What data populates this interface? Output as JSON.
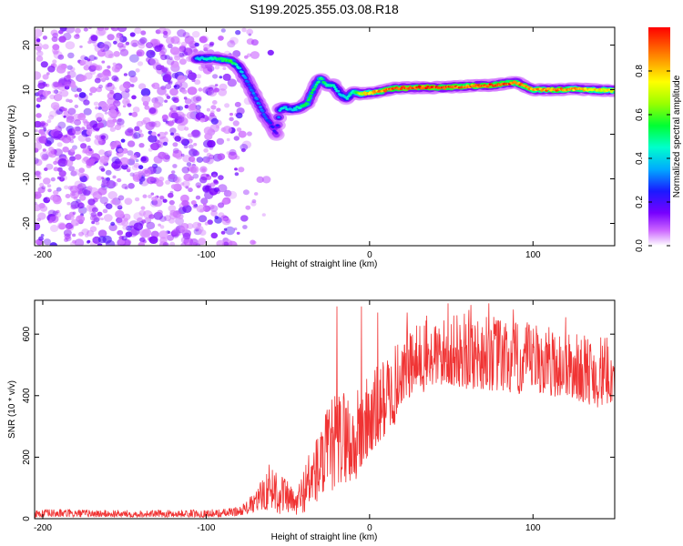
{
  "title": "S199.2025.355.03.08.R18",
  "chart_data": [
    {
      "type": "heatmap",
      "xlabel": "Height of straight line (km)",
      "ylabel": "Frequency (Hz)",
      "xlim": [
        -205,
        150
      ],
      "ylim": [
        -25,
        24
      ],
      "xticks": [
        -200,
        -100,
        0,
        100
      ],
      "yticks": [
        20,
        10,
        0,
        -10,
        -20
      ],
      "colorbar": {
        "label": "Normalized spectral amplitude",
        "range": [
          0,
          1
        ],
        "ticks": [
          "0.0",
          "0.2",
          "0.4",
          "0.6",
          "0.8"
        ],
        "colormap": "rainbow (magenta-low to red-high)"
      },
      "noise_region": {
        "x_range": [
          -205,
          -80
        ],
        "freq_range": [
          -25,
          24
        ],
        "amplitude_range": [
          0.05,
          0.2
        ]
      },
      "ridge": {
        "x": [
          -106,
          -95,
          -85,
          -80,
          -75,
          -68,
          -64,
          -60,
          -57,
          -55,
          -52,
          -48,
          -43,
          -38,
          -33,
          -30,
          -26,
          -22,
          -18,
          -14,
          -10,
          -6,
          -2,
          5,
          15,
          30,
          45,
          60,
          75,
          85,
          90,
          100,
          115,
          125,
          135,
          150
        ],
        "frequency": [
          17,
          17,
          16.5,
          15,
          12,
          7,
          4,
          2,
          0,
          5.5,
          6,
          5.5,
          6,
          7,
          11,
          12.5,
          11,
          11,
          9,
          8,
          9.5,
          9,
          9.2,
          9.5,
          10.3,
          10.5,
          10.5,
          10.8,
          11,
          11.5,
          11.6,
          10,
          10,
          10.2,
          10,
          9.8
        ],
        "amplitude": [
          0.4,
          0.5,
          0.55,
          0.45,
          0.3,
          0.35,
          0.3,
          0.25,
          0.2,
          0.4,
          0.45,
          0.4,
          0.5,
          0.55,
          0.5,
          0.55,
          0.5,
          0.45,
          0.4,
          0.45,
          0.5,
          0.7,
          0.8,
          0.85,
          0.95,
          0.95,
          0.95,
          0.9,
          0.95,
          0.95,
          0.9,
          0.85,
          0.9,
          0.85,
          0.8,
          0.75
        ]
      }
    },
    {
      "type": "line",
      "xlabel": "Height of straight line (km)",
      "ylabel": "SNR (10 * v/v)",
      "xlim": [
        -205,
        150
      ],
      "ylim": [
        0,
        710
      ],
      "xticks": [
        -200,
        -100,
        0,
        100
      ],
      "yticks": [
        0,
        200,
        400,
        600
      ],
      "series": [
        {
          "name": "SNR",
          "color": "#f03333",
          "envelope": {
            "x": [
              -205,
              -190,
              -170,
              -150,
              -130,
              -110,
              -100,
              -90,
              -80,
              -75,
              -70,
              -65,
              -60,
              -55,
              -50,
              -45,
              -40,
              -35,
              -30,
              -25,
              -20,
              -15,
              -10,
              -5,
              0,
              5,
              10,
              15,
              20,
              30,
              40,
              50,
              60,
              70,
              80,
              90,
              100,
              110,
              120,
              130,
              140,
              150
            ],
            "low": [
              5,
              5,
              5,
              5,
              5,
              5,
              5,
              5,
              10,
              15,
              20,
              30,
              25,
              15,
              20,
              10,
              20,
              40,
              60,
              80,
              100,
              120,
              100,
              150,
              200,
              220,
              280,
              300,
              380,
              400,
              430,
              430,
              420,
              420,
              410,
              400,
              410,
              400,
              390,
              380,
              360,
              380
            ],
            "high": [
              30,
              32,
              30,
              28,
              28,
              30,
              30,
              32,
              40,
              60,
              90,
              140,
              200,
              170,
              120,
              90,
              180,
              260,
              300,
              380,
              420,
              440,
              400,
              450,
              480,
              500,
              540,
              560,
              600,
              640,
              650,
              660,
              680,
              670,
              660,
              640,
              640,
              630,
              610,
              600,
              600,
              580
            ]
          },
          "spikes": [
            {
              "x": -20,
              "y": 690
            },
            {
              "x": -5,
              "y": 690
            },
            {
              "x": 5,
              "y": 670
            },
            {
              "x": 23,
              "y": 670
            },
            {
              "x": 35,
              "y": 660
            },
            {
              "x": 48,
              "y": 700
            },
            {
              "x": 62,
              "y": 695
            },
            {
              "x": 73,
              "y": 700
            },
            {
              "x": 88,
              "y": 680
            },
            {
              "x": 120,
              "y": 655
            }
          ]
        }
      ]
    }
  ]
}
